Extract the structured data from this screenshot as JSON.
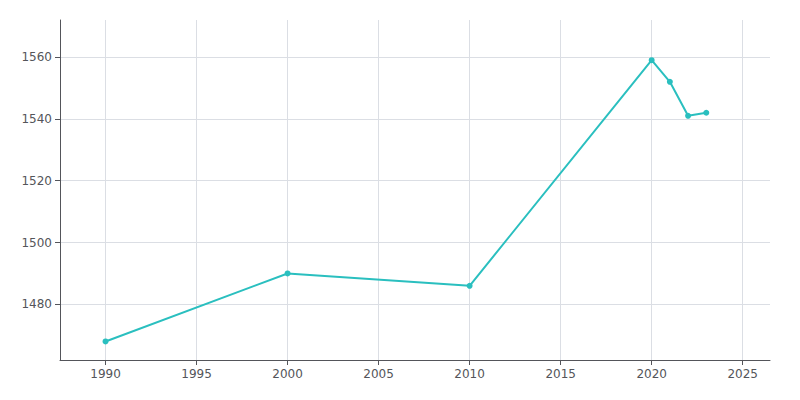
{
  "chart_data": {
    "type": "line",
    "x": [
      1990,
      2000,
      2010,
      2020,
      2021,
      2022,
      2023
    ],
    "values": [
      1468,
      1490,
      1486,
      1559,
      1552,
      1541,
      1542
    ],
    "color": "#2abfbf",
    "marker": "circle",
    "xlim": [
      1987.5,
      2026.5
    ],
    "xticks": [
      1990,
      1995,
      2000,
      2005,
      2010,
      2015,
      2020,
      2025
    ],
    "ylim": [
      1462,
      1572
    ],
    "yticks": [
      1480,
      1500,
      1520,
      1540,
      1560
    ],
    "grid": true
  }
}
